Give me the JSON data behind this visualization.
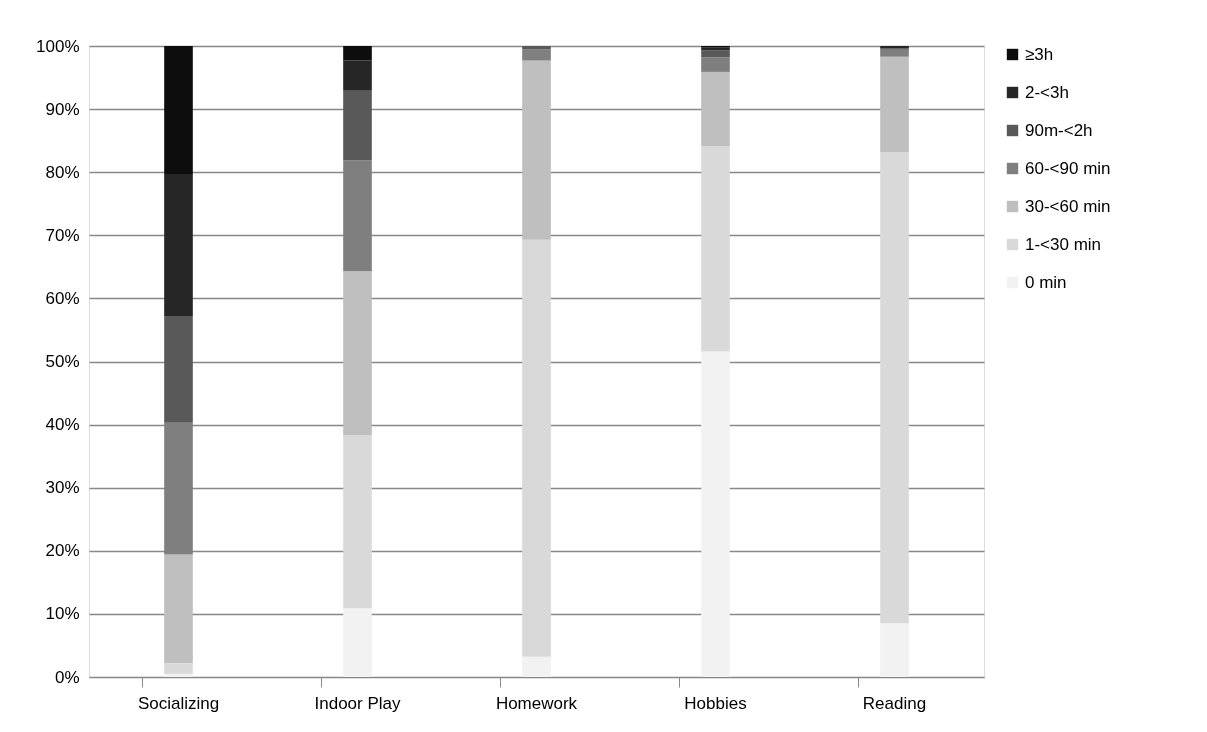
{
  "chart_data": {
    "type": "bar",
    "stacked": true,
    "categories": [
      "Socializing",
      "Indoor Play",
      "Homework",
      "Hobbies",
      "Reading"
    ],
    "series": [
      {
        "name": "0 min",
        "color": "#f2f2f2",
        "values": [
          0.5,
          10.9,
          3.2,
          51.6,
          8.5
        ]
      },
      {
        "name": "1-<30 min",
        "color": "#d9d9d9",
        "values": [
          1.7,
          27.4,
          66.1,
          32.5,
          74.7
        ]
      },
      {
        "name": "30-<60 min",
        "color": "#bfbfbf",
        "values": [
          17.2,
          26.0,
          28.4,
          11.8,
          15.1
        ]
      },
      {
        "name": "60-<90 min",
        "color": "#7f7f7f",
        "values": [
          20.9,
          17.6,
          1.8,
          2.3,
          1.1
        ]
      },
      {
        "name": "90m-<2h",
        "color": "#595959",
        "values": [
          16.9,
          11.0,
          0.5,
          1.1,
          0.2
        ]
      },
      {
        "name": "2-<3h",
        "color": "#262626",
        "values": [
          22.5,
          4.8,
          0,
          0.5,
          0.4
        ]
      },
      {
        "name": "≥3h",
        "color": "#0d0d0d",
        "values": [
          20.3,
          2.3,
          0,
          0.2,
          0
        ]
      }
    ],
    "ylim": [
      0,
      100
    ],
    "yticks": [
      {
        "value": 0,
        "label": "0%"
      },
      {
        "value": 10,
        "label": "10%"
      },
      {
        "value": 20,
        "label": "20%"
      },
      {
        "value": 30,
        "label": "30%"
      },
      {
        "value": 40,
        "label": "40%"
      },
      {
        "value": 50,
        "label": "50%"
      },
      {
        "value": 60,
        "label": "60%"
      },
      {
        "value": 70,
        "label": "70%"
      },
      {
        "value": 80,
        "label": "80%"
      },
      {
        "value": 90,
        "label": "90%"
      },
      {
        "value": 100,
        "label": "100%"
      }
    ],
    "grid": "y",
    "legend": "right"
  }
}
